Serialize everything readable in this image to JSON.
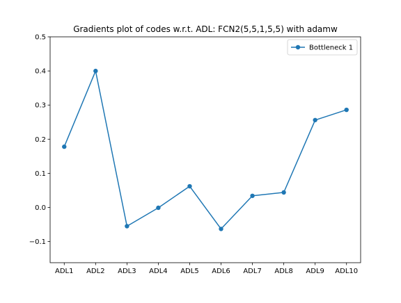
{
  "colors": {
    "series": "#1f77b4",
    "axis": "#000000",
    "background": "#ffffff",
    "legend_border": "#cccccc"
  },
  "chart_data": {
    "type": "line",
    "title": "Gradients plot of codes w.r.t. ADL: FCN2(5,5,1,5,5) with adamw",
    "xlabel": "",
    "ylabel": "",
    "categories": [
      "ADL1",
      "ADL2",
      "ADL3",
      "ADL4",
      "ADL5",
      "ADL6",
      "ADL7",
      "ADL8",
      "ADL9",
      "ADL10"
    ],
    "series": [
      {
        "name": "Bottleneck 1",
        "marker": "circle",
        "values": [
          0.178,
          0.4,
          -0.055,
          -0.001,
          0.062,
          -0.063,
          0.034,
          0.044,
          0.256,
          0.286
        ]
      }
    ],
    "ylim": [
      -0.162,
      0.5
    ],
    "yticks": [
      -0.1,
      0.0,
      0.1,
      0.2,
      0.3,
      0.4,
      0.5
    ],
    "ytick_labels": [
      "−0.1",
      "0.0",
      "0.1",
      "0.2",
      "0.3",
      "0.4",
      "0.5"
    ],
    "grid": false,
    "legend_position": "top-right"
  }
}
